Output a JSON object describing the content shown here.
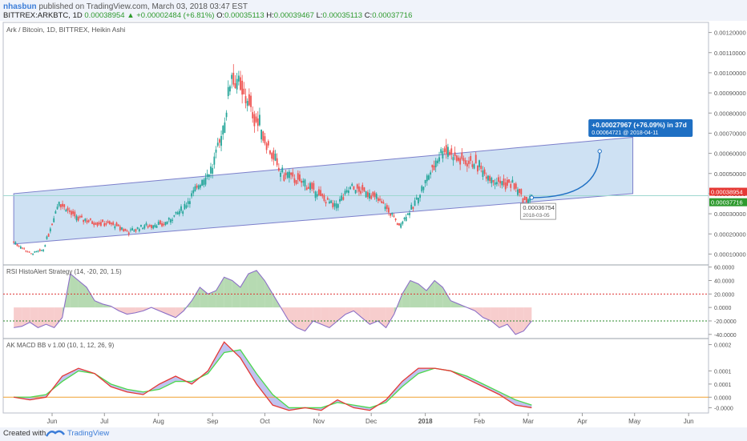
{
  "header": {
    "author": "nhasbun",
    "published": "published on TradingView.com, March 03, 2018 03:47 EST",
    "symbol": "BITTREX:ARKBTC, 1D",
    "price": "0.00038954",
    "change": "+0.00002484 (+6.81%)",
    "o_label": "O:",
    "o": "0.00035113",
    "h_label": "H:",
    "h": "0.00039467",
    "l_label": "L:",
    "l": "0.00035113",
    "c_label": "C:",
    "c": "0.00037716"
  },
  "footer": {
    "created_with": "Created with",
    "brand": "TradingView"
  },
  "colors": {
    "up": "#26a69a",
    "down": "#ef5350",
    "channel_fill": "#c6dcf1",
    "channel_line": "#7c7fcb",
    "arrow": "#1e6fc3",
    "price_tag": "#e53935",
    "last_tag": "#2e9a2e",
    "rsi_line": "#8c6fc7",
    "macd_fast": "#e53935",
    "macd_slow": "#4cd94c",
    "macd_fill": "#8c8fe3",
    "zero_line": "#f0a030"
  },
  "chart_data": [
    {
      "type": "candlestick",
      "title": "Ark / Bitcoin, 1D, BITTREX, Heikin Ashi",
      "xlabels": [
        "Jun",
        "Jul",
        "Aug",
        "Sep",
        "Oct",
        "Nov",
        "Dec",
        "2018",
        "Feb",
        "Mar",
        "Apr",
        "May",
        "Jun"
      ],
      "ylabels": [
        "0.00120000",
        "0.00110000",
        "0.00100000",
        "0.00090000",
        "0.00080000",
        "0.00070000",
        "0.00060000",
        "0.00050000",
        "0.00040000",
        "0.00030000",
        "0.00020000",
        "0.00010000"
      ],
      "ylim": [
        5e-05,
        0.00125
      ],
      "price_path": [
        [
          "2017-05-10",
          0.00016
        ],
        [
          "2017-05-20",
          0.0001
        ],
        [
          "2017-05-27",
          0.00012
        ],
        [
          "2017-06-05",
          0.00036
        ],
        [
          "2017-06-15",
          0.00028
        ],
        [
          "2017-06-25",
          0.00026
        ],
        [
          "2017-07-05",
          0.00025
        ],
        [
          "2017-07-15",
          0.00021
        ],
        [
          "2017-07-25",
          0.00024
        ],
        [
          "2017-08-05",
          0.00025
        ],
        [
          "2017-08-15",
          0.00032
        ],
        [
          "2017-08-25",
          0.00045
        ],
        [
          "2017-09-01",
          0.00052
        ],
        [
          "2017-09-08",
          0.00075
        ],
        [
          "2017-09-12",
          0.001
        ],
        [
          "2017-09-15",
          0.00095
        ],
        [
          "2017-09-22",
          0.00085
        ],
        [
          "2017-10-01",
          0.00068
        ],
        [
          "2017-10-10",
          0.0005
        ],
        [
          "2017-10-20",
          0.00047
        ],
        [
          "2017-11-01",
          0.0004
        ],
        [
          "2017-11-10",
          0.00033
        ],
        [
          "2017-11-20",
          0.00043
        ],
        [
          "2017-12-01",
          0.0004
        ],
        [
          "2017-12-10",
          0.00033
        ],
        [
          "2017-12-17",
          0.00024
        ],
        [
          "2017-12-25",
          0.00033
        ],
        [
          "2018-01-05",
          0.00052
        ],
        [
          "2018-01-12",
          0.00063
        ],
        [
          "2018-01-20",
          0.00057
        ],
        [
          "2018-01-30",
          0.00055
        ],
        [
          "2018-02-10",
          0.00046
        ],
        [
          "2018-02-20",
          0.00045
        ],
        [
          "2018-02-28",
          0.00036
        ],
        [
          "2018-03-03",
          0.00039
        ]
      ],
      "channel": {
        "start": [
          "2017-05-10",
          0.00015
        ],
        "end": [
          "2018-04-30",
          0.0004
        ],
        "top_start": [
          "2017-05-10",
          0.0004
        ],
        "top_end": [
          "2018-04-30",
          0.00068
        ]
      },
      "projection": {
        "from": [
          "2018-03-03",
          0.00038
        ],
        "to": [
          "2018-04-11",
          0.00065
        ]
      },
      "callout": {
        "line1": "+0.00027967 (+76.09%) in 37d",
        "line2": "0.00064721 @ 2018-04-11"
      },
      "point_label": {
        "value": "0.00036754",
        "date": "2018-03-05"
      },
      "price_tags": [
        {
          "value": "0.00038954",
          "kind": "price"
        },
        {
          "value": "0.00037716",
          "kind": "last"
        }
      ]
    },
    {
      "type": "area",
      "title": "RSI HistoAlert Strategy (14, -20, 20, 1.5)",
      "ylabels": [
        "60.0000",
        "40.0000",
        "20.0000",
        "0.0000",
        "-20.0000",
        "-40.0000"
      ],
      "ylim": [
        -45,
        62
      ],
      "levels": [
        20,
        -20
      ],
      "values": [
        -30,
        -28,
        -22,
        -30,
        -25,
        -30,
        -15,
        50,
        40,
        30,
        10,
        5,
        2,
        -5,
        -10,
        -8,
        -5,
        0,
        -5,
        -10,
        -15,
        -5,
        10,
        30,
        20,
        25,
        45,
        40,
        30,
        50,
        55,
        40,
        20,
        0,
        -20,
        -30,
        -35,
        -20,
        -25,
        -30,
        -20,
        -10,
        -5,
        -15,
        -25,
        -20,
        -30,
        -10,
        20,
        40,
        35,
        25,
        40,
        30,
        10,
        5,
        0,
        -5,
        -15,
        -20,
        -30,
        -25,
        -40,
        -35,
        -20
      ]
    },
    {
      "type": "line",
      "title": "AK MACD BB v 1.00 (10, 1, 12, 26, 9)",
      "ylabels": [
        "0.0002",
        "0.0001",
        "0.0001",
        "0.0000",
        "-0.0000"
      ],
      "ylim": [
        -6e-05,
        0.00022
      ],
      "fast": [
        0.0,
        -1e-05,
        0.0,
        8e-05,
        0.00011,
        9e-05,
        4e-05,
        2e-05,
        1e-05,
        5e-05,
        8e-05,
        5e-05,
        0.0001,
        0.00021,
        0.00015,
        5e-05,
        -3e-05,
        -5e-05,
        -4e-05,
        -5e-05,
        -1e-05,
        -4e-05,
        -5e-05,
        -1e-05,
        6e-05,
        0.00011,
        0.00011,
        0.0001,
        7e-05,
        4e-05,
        1e-05,
        -3e-05,
        -4e-05
      ],
      "slow": [
        0.0,
        0.0,
        1e-05,
        6e-05,
        0.0001,
        9e-05,
        5e-05,
        3e-05,
        2e-05,
        3e-05,
        6e-05,
        6e-05,
        9e-05,
        0.00017,
        0.00018,
        9e-05,
        1e-05,
        -4e-05,
        -4e-05,
        -4e-05,
        -2e-05,
        -3e-05,
        -4e-05,
        -2e-05,
        4e-05,
        9e-05,
        0.00011,
        0.0001,
        8e-05,
        5e-05,
        2e-05,
        -1e-05,
        -3e-05
      ]
    }
  ]
}
